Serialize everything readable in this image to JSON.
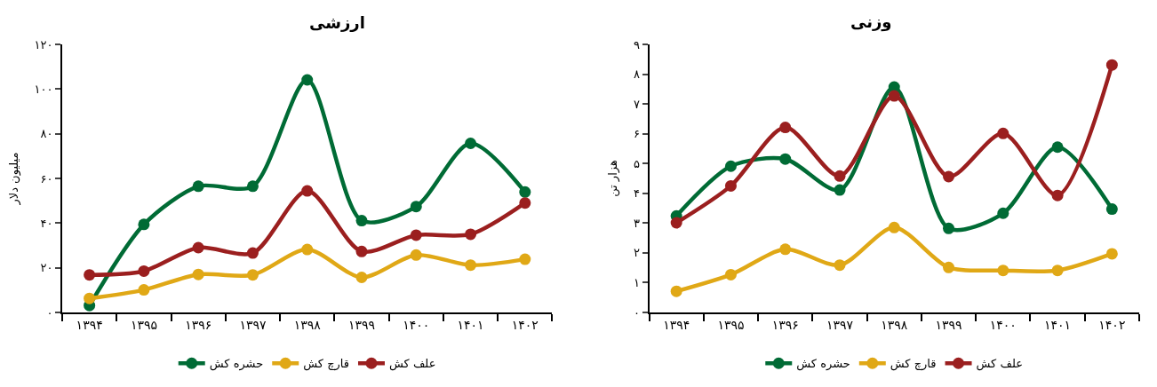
{
  "chart_data": [
    {
      "type": "line",
      "title": "ارزشی",
      "ylabel": "میلیون دلار",
      "categories": [
        "۱۳۹۴",
        "۱۳۹۵",
        "۱۳۹۶",
        "۱۳۹۷",
        "۱۳۹۸",
        "۱۳۹۹",
        "۱۴۰۰",
        "۱۴۰۱",
        "۱۴۰۲"
      ],
      "ylim": [
        0,
        120
      ],
      "yticks": [
        {
          "value": 0,
          "label": "۰"
        },
        {
          "value": 20,
          "label": "۲۰"
        },
        {
          "value": 40,
          "label": "۴۰"
        },
        {
          "value": 60,
          "label": "۶۰"
        },
        {
          "value": 80,
          "label": "۸۰"
        },
        {
          "value": 100,
          "label": "۱۰۰"
        },
        {
          "value": 120,
          "label": "۱۲۰"
        }
      ],
      "legend": "bottom",
      "marker": "circle",
      "line_style": "solid",
      "series": [
        {
          "name": "حشره کش",
          "color": "#006b35",
          "values": [
            3.1,
            39.4,
            56.5,
            56.5,
            104.1,
            41.1,
            47.4,
            75.7,
            53.9
          ]
        },
        {
          "name": "قارچ کش",
          "color": "#e0a816",
          "values": [
            6.3,
            10.1,
            17.0,
            16.8,
            28.2,
            15.7,
            25.7,
            21.2,
            23.8
          ]
        },
        {
          "name": "علف کش",
          "color": "#9b1f1f",
          "values": [
            16.8,
            18.5,
            29.0,
            26.6,
            54.4,
            27.3,
            34.6,
            35.0,
            49.0
          ]
        }
      ]
    },
    {
      "type": "line",
      "title": "وزنی",
      "ylabel": "هزار تن",
      "categories": [
        "۱۳۹۴",
        "۱۳۹۵",
        "۱۳۹۶",
        "۱۳۹۷",
        "۱۳۹۸",
        "۱۳۹۹",
        "۱۴۰۰",
        "۱۴۰۱",
        "۱۴۰۲"
      ],
      "ylim": [
        0,
        9
      ],
      "yticks": [
        {
          "value": 0,
          "label": "۰"
        },
        {
          "value": 1,
          "label": "۱"
        },
        {
          "value": 2,
          "label": "۲"
        },
        {
          "value": 3,
          "label": "۳"
        },
        {
          "value": 4,
          "label": "۴"
        },
        {
          "value": 5,
          "label": "۵"
        },
        {
          "value": 6,
          "label": "۶"
        },
        {
          "value": 7,
          "label": "۷"
        },
        {
          "value": 8,
          "label": "۸"
        },
        {
          "value": 9,
          "label": "۹"
        }
      ],
      "legend": "bottom",
      "marker": "circle",
      "line_style": "solid",
      "series": [
        {
          "name": "حشره کش",
          "color": "#006b35",
          "values": [
            3.24,
            4.91,
            5.15,
            4.11,
            7.57,
            2.82,
            3.33,
            5.55,
            3.47
          ]
        },
        {
          "name": "قارچ کش",
          "color": "#e0a816",
          "values": [
            0.71,
            1.27,
            2.12,
            1.59,
            2.85,
            1.51,
            1.41,
            1.41,
            1.97
          ]
        },
        {
          "name": "علف کش",
          "color": "#9b1f1f",
          "values": [
            3.01,
            4.25,
            6.21,
            4.58,
            7.27,
            4.56,
            6.01,
            3.93,
            8.31
          ]
        }
      ]
    }
  ]
}
